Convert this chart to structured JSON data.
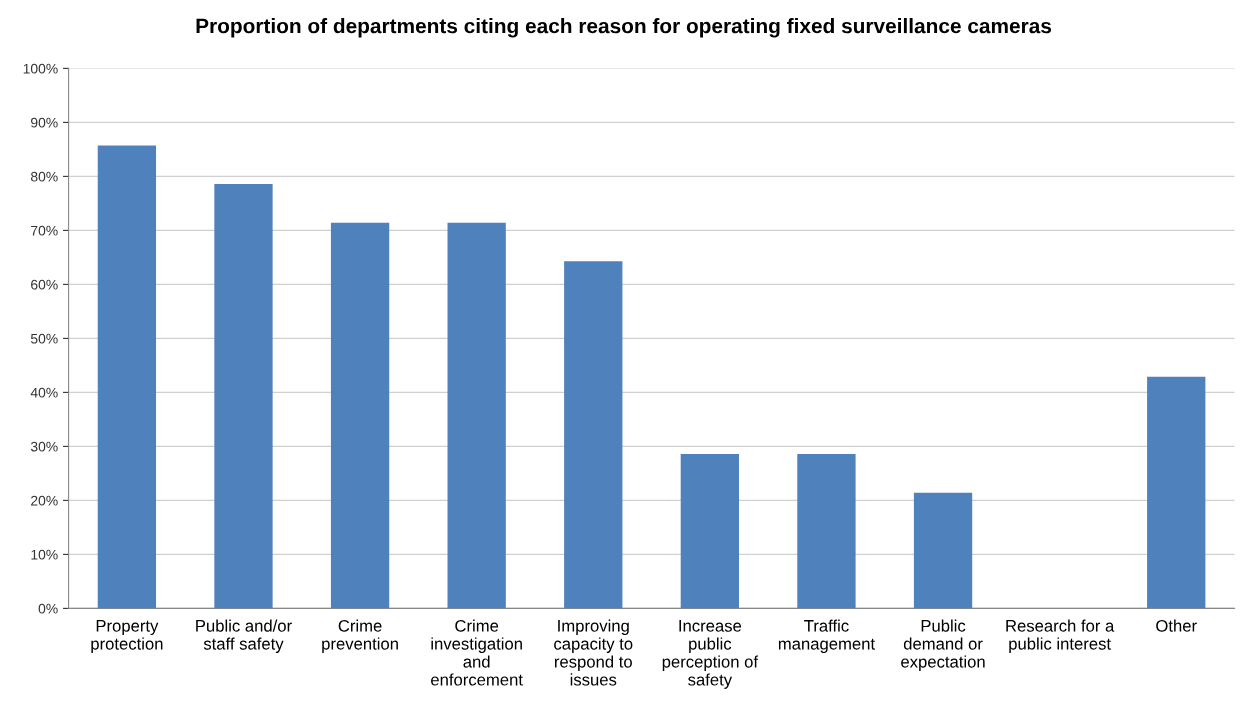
{
  "chart_data": {
    "type": "bar",
    "title": "Proportion of departments citing each reason for operating fixed surveillance cameras",
    "categories": [
      "Property\nprotection",
      "Public and/or\nstaff safety",
      "Crime\nprevention",
      "Crime\ninvestigation\nand\nenforcement",
      "Improving\ncapacity to\nrespond to\nissues",
      "Increase\npublic\nperception of\nsafety",
      "Traffic\nmanagement",
      "Public\ndemand or\nexpectation",
      "Research for a\npublic interest",
      "Other"
    ],
    "values": [
      85.7,
      78.6,
      71.4,
      71.4,
      64.3,
      28.6,
      28.6,
      21.4,
      0,
      42.9
    ],
    "color": "#4f81bd",
    "ylim": [
      0,
      100
    ],
    "yticks": [
      {
        "value": 0,
        "label": "0%"
      },
      {
        "value": 10,
        "label": "10%"
      },
      {
        "value": 20,
        "label": "20%"
      },
      {
        "value": 30,
        "label": "30%"
      },
      {
        "value": 40,
        "label": "40%"
      },
      {
        "value": 50,
        "label": "50%"
      },
      {
        "value": 60,
        "label": "60%"
      },
      {
        "value": 70,
        "label": "70%"
      },
      {
        "value": 80,
        "label": "80%"
      },
      {
        "value": 90,
        "label": "90%"
      },
      {
        "value": 100,
        "label": "100%"
      }
    ],
    "grid": "y"
  }
}
